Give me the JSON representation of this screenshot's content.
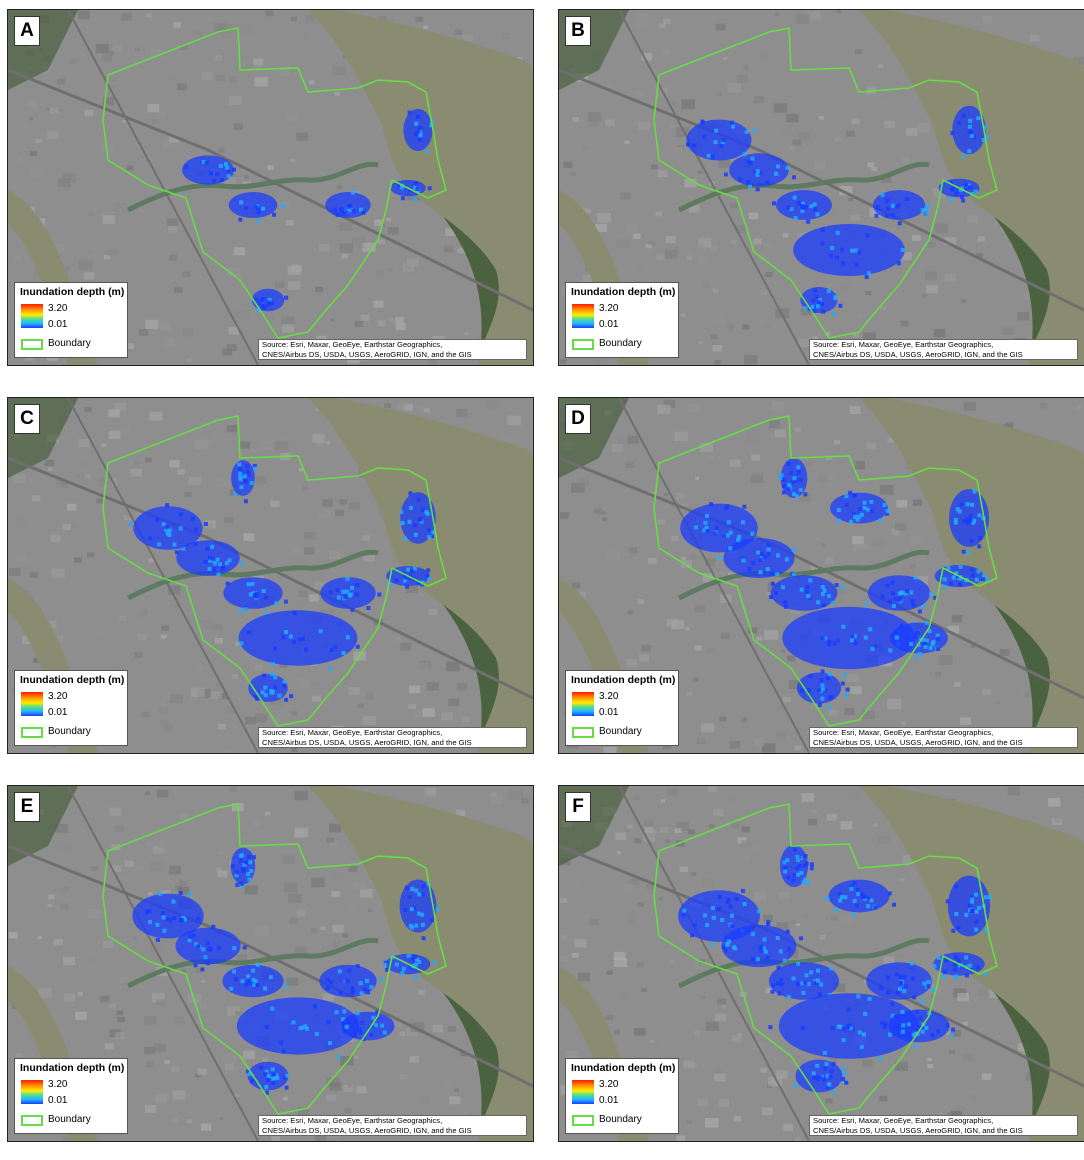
{
  "panels": [
    {
      "label": "A",
      "extent": 0.35
    },
    {
      "label": "B",
      "extent": 0.55
    },
    {
      "label": "C",
      "extent": 0.65
    },
    {
      "label": "D",
      "extent": 0.85
    },
    {
      "label": "E",
      "extent": 0.7
    },
    {
      "label": "F",
      "extent": 0.95
    }
  ],
  "legend": {
    "title": "Inundation depth (m)",
    "max": "3.20",
    "min": "0.01",
    "boundary": "Boundary"
  },
  "source": {
    "line1": "Source: Esri, Maxar, GeoEye, Earthstar Geographics,",
    "line2": "CNES/Airbus DS, USDA, USGS, AeroGRID, IGN, and the GIS"
  },
  "colors": {
    "boundary": "#66dd44",
    "flood_shallow": "#22aaff",
    "flood_deep": "#1a3cff",
    "river": "#8a8c72",
    "urban": "#8e8e8e",
    "vegetation": "#3f5a32"
  }
}
